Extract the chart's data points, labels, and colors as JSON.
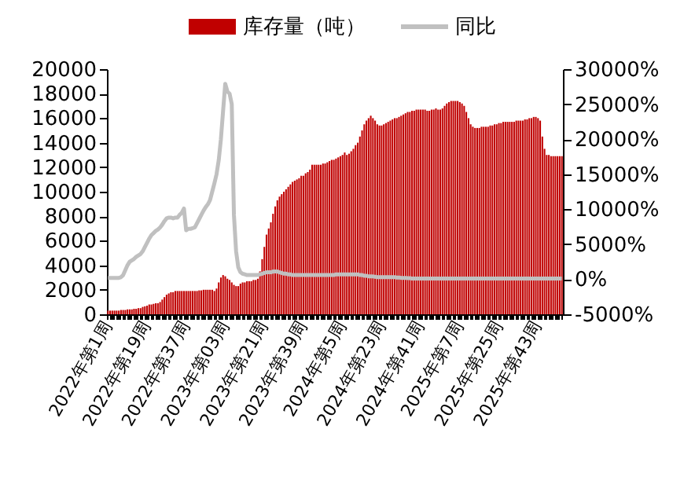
{
  "chart_data": {
    "type": "bar",
    "categories": [
      "2022年第1周",
      null,
      null,
      null,
      null,
      null,
      null,
      null,
      null,
      null,
      null,
      null,
      null,
      null,
      null,
      null,
      null,
      null,
      "2022年第19周",
      null,
      null,
      null,
      null,
      null,
      null,
      null,
      null,
      null,
      null,
      null,
      null,
      null,
      null,
      null,
      null,
      null,
      "2022年第37周",
      null,
      null,
      null,
      null,
      null,
      null,
      null,
      null,
      null,
      null,
      null,
      null,
      null,
      null,
      null,
      null,
      null,
      "2023年第03周",
      null,
      null,
      null,
      null,
      null,
      null,
      null,
      null,
      null,
      null,
      null,
      null,
      null,
      null,
      null,
      null,
      null,
      "2023年第21周",
      null,
      null,
      null,
      null,
      null,
      null,
      null,
      null,
      null,
      null,
      null,
      null,
      null,
      null,
      null,
      null,
      null,
      "2023年第39周",
      null,
      null,
      null,
      null,
      null,
      null,
      null,
      null,
      null,
      null,
      null,
      null,
      null,
      null,
      null,
      null,
      null,
      "2024年第5周",
      null,
      null,
      null,
      null,
      null,
      null,
      null,
      null,
      null,
      null,
      null,
      null,
      null,
      null,
      null,
      null,
      null,
      "2024年第23周",
      null,
      null,
      null,
      null,
      null,
      null,
      null,
      null,
      null,
      null,
      null,
      null,
      null,
      null,
      null,
      null,
      null,
      "2024年第41周",
      null,
      null,
      null,
      null,
      null,
      null,
      null,
      null,
      null,
      null,
      null,
      null,
      null,
      null,
      null,
      null,
      null,
      "2025年第7周",
      null,
      null,
      null,
      null,
      null,
      null,
      null,
      null,
      null,
      null,
      null,
      null,
      null,
      null,
      null,
      null,
      null,
      "2025年第25周",
      null,
      null,
      null,
      null,
      null,
      null,
      null,
      null,
      null,
      null,
      null,
      null,
      null,
      null,
      null,
      null,
      null,
      "2025年第43周",
      null,
      null,
      null,
      null,
      null,
      null,
      null,
      null,
      null,
      null,
      null
    ],
    "series": [
      {
        "name": "库存量（吨）",
        "color": "#c00000",
        "values": [
          300,
          300,
          300,
          300,
          300,
          300,
          350,
          350,
          350,
          400,
          400,
          400,
          450,
          450,
          500,
          500,
          600,
          650,
          700,
          800,
          800,
          850,
          900,
          900,
          1000,
          1200,
          1400,
          1600,
          1700,
          1800,
          1800,
          1900,
          1900,
          1900,
          1900,
          1900,
          1900,
          1900,
          1900,
          1900,
          1900,
          1900,
          1950,
          1950,
          2000,
          2000,
          2000,
          2000,
          2000,
          1900,
          2100,
          2600,
          3000,
          3200,
          3100,
          2900,
          2800,
          2600,
          2400,
          2300,
          2300,
          2500,
          2600,
          2600,
          2700,
          2700,
          2700,
          2800,
          2800,
          2900,
          3500,
          4500,
          5500,
          6500,
          7000,
          7500,
          8200,
          8800,
          9300,
          9600,
          9800,
          10000,
          10200,
          10400,
          10600,
          10800,
          10900,
          11000,
          11100,
          11300,
          11300,
          11500,
          11600,
          11800,
          12200,
          12200,
          12200,
          12200,
          12200,
          12300,
          12300,
          12400,
          12500,
          12600,
          12600,
          12700,
          12800,
          12900,
          13000,
          13200,
          13000,
          13100,
          13300,
          13500,
          13800,
          14000,
          14500,
          15000,
          15500,
          15800,
          16000,
          16200,
          16000,
          15800,
          15500,
          15400,
          15400,
          15500,
          15600,
          15700,
          15800,
          15900,
          16000,
          16000,
          16100,
          16200,
          16300,
          16400,
          16500,
          16500,
          16600,
          16600,
          16700,
          16700,
          16700,
          16700,
          16700,
          16600,
          16600,
          16700,
          16700,
          16800,
          16700,
          16700,
          16800,
          17000,
          17200,
          17300,
          17400,
          17400,
          17400,
          17400,
          17300,
          17200,
          17000,
          16500,
          16000,
          15500,
          15300,
          15200,
          15200,
          15200,
          15300,
          15300,
          15300,
          15300,
          15400,
          15400,
          15500,
          15500,
          15600,
          15600,
          15700,
          15700,
          15700,
          15700,
          15700,
          15700,
          15800,
          15800,
          15800,
          15800,
          15900,
          15900,
          16000,
          16000,
          16100,
          16100,
          16000,
          15800,
          14500,
          13500,
          13000,
          13000,
          12900,
          12900,
          12900,
          12900,
          12900,
          12900
        ]
      },
      {
        "name": "同比",
        "type": "line",
        "axis": "y2",
        "color": "#c0c0c0",
        "values": [
          200,
          200,
          200,
          200,
          200,
          200,
          300,
          600,
          1300,
          2000,
          2500,
          2700,
          2900,
          3200,
          3400,
          3600,
          4000,
          4600,
          5200,
          5800,
          6300,
          6600,
          6900,
          7100,
          7400,
          7800,
          8300,
          8700,
          8800,
          8800,
          8700,
          8800,
          8800,
          9200,
          9500,
          10100,
          7000,
          7200,
          7200,
          7300,
          7400,
          8000,
          8600,
          9200,
          9800,
          10300,
          10700,
          11300,
          12500,
          13700,
          15000,
          17000,
          20000,
          24000,
          27900,
          26800,
          26500,
          25000,
          9200,
          4000,
          1700,
          1000,
          800,
          700,
          600,
          600,
          600,
          600,
          600,
          600,
          700,
          800,
          900,
          1000,
          1000,
          1000,
          1100,
          1100,
          1100,
          1000,
          900,
          800,
          800,
          700,
          700,
          600,
          600,
          600,
          600,
          600,
          600,
          600,
          600,
          600,
          600,
          600,
          600,
          600,
          600,
          600,
          600,
          600,
          600,
          600,
          600,
          700,
          700,
          700,
          700,
          700,
          700,
          700,
          700,
          700,
          700,
          700,
          600,
          600,
          500,
          500,
          400,
          400,
          400,
          350,
          300,
          300,
          300,
          300,
          300,
          300,
          300,
          300,
          300,
          250,
          250,
          200,
          200,
          200,
          150,
          150,
          100,
          100,
          100,
          100,
          100,
          100,
          100,
          100,
          100,
          100,
          100,
          100,
          100,
          100,
          100,
          100,
          100,
          100,
          100,
          100,
          100,
          100,
          100,
          100,
          100,
          100,
          100,
          100,
          100,
          100,
          100,
          100,
          100,
          100,
          100,
          100,
          100,
          100,
          100,
          100,
          100,
          100,
          100,
          100,
          100,
          100,
          100,
          100,
          100,
          100,
          100,
          100,
          100,
          100,
          100,
          100,
          100,
          100,
          100,
          100,
          100,
          100,
          100,
          100,
          100,
          100,
          100,
          100,
          100,
          100
        ]
      }
    ],
    "ylim": [
      0,
      20000
    ],
    "yticks": [
      0,
      2000,
      4000,
      6000,
      8000,
      10000,
      12000,
      14000,
      16000,
      18000,
      20000
    ],
    "y2lim": [
      -5000,
      30000
    ],
    "y2ticks": [
      {
        "value": -5000,
        "label": "-5000%"
      },
      {
        "value": 0,
        "label": "0%"
      },
      {
        "value": 5000,
        "label": "5000%"
      },
      {
        "value": 10000,
        "label": "10000%"
      },
      {
        "value": 15000,
        "label": "15000%"
      },
      {
        "value": 20000,
        "label": "20000%"
      },
      {
        "value": 25000,
        "label": "25000%"
      },
      {
        "value": 30000,
        "label": "30000%"
      }
    ],
    "legend": "top",
    "grid": false
  }
}
